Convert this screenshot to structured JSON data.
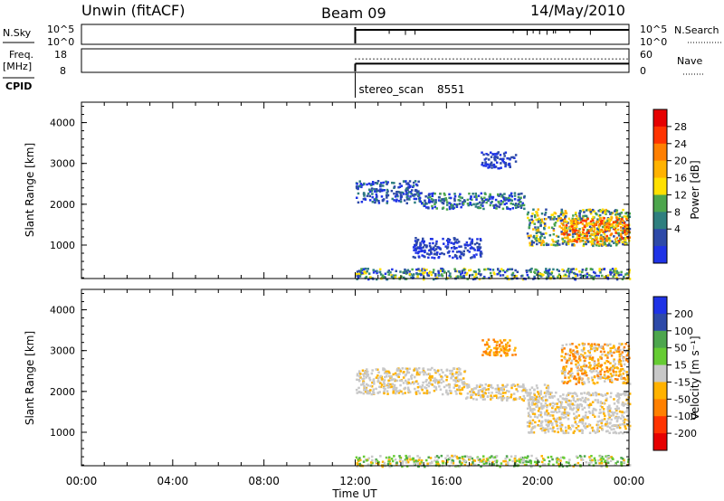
{
  "header": {
    "title": "Unwin (fitACF)",
    "beam": "Beam 09",
    "date": "14/May/2010"
  },
  "chart_data": [
    {
      "type": "line",
      "panel": "noise",
      "left_label": "N.Sky",
      "right_label": "N.Search",
      "left_ticks": [
        "10^5",
        "10^0"
      ],
      "right_ticks": [
        "10^5",
        "10^0"
      ],
      "x_range_hours": [
        0,
        24
      ],
      "data_start_hour": 12
    },
    {
      "type": "line",
      "panel": "frequency",
      "left_label": "Freq.",
      "left_unit": "[MHz]",
      "right_label": "Nave",
      "left_ticks": [
        18,
        8
      ],
      "right_ticks": [
        60,
        0
      ],
      "freq_mhz_after_start": 11.7,
      "nave_after_start": 34,
      "data_start_hour": 12
    },
    {
      "type": "table",
      "panel": "cpid",
      "label": "CPID",
      "program_name": "stereo_scan",
      "program_id": "8551",
      "start_hour": 12
    },
    {
      "type": "heatmap",
      "panel": "power",
      "ylabel": "Slant Range [km]",
      "yticks": [
        1000,
        2000,
        3000,
        4000
      ],
      "ylim": [
        180,
        4500
      ],
      "colorbar": {
        "title": "Power [dB]",
        "labels": [
          "28",
          "24",
          "20",
          "16",
          "12",
          "8",
          "4"
        ],
        "colors": [
          "#e60000",
          "#ff3300",
          "#ff7f00",
          "#ffb200",
          "#ffe000",
          "#4da64d",
          "#2f7f7f",
          "#2e4aa8",
          "#1f33e6"
        ]
      },
      "bands": [
        {
          "t0": 12.0,
          "t1": 14.8,
          "r0": 2050,
          "r1": 2600,
          "levels": [
            0,
            1,
            2
          ]
        },
        {
          "t0": 14.8,
          "t1": 19.5,
          "r0": 1900,
          "r1": 2300,
          "levels": [
            0,
            1,
            2,
            3
          ]
        },
        {
          "t0": 17.5,
          "t1": 19.0,
          "r0": 2900,
          "r1": 3300,
          "levels": [
            0,
            1
          ]
        },
        {
          "t0": 19.5,
          "t1": 24.0,
          "r0": 1000,
          "r1": 1900,
          "levels": [
            1,
            2,
            3,
            4,
            5
          ]
        },
        {
          "t0": 21.0,
          "t1": 24.0,
          "r0": 1100,
          "r1": 1700,
          "levels": [
            4,
            5,
            6,
            7
          ]
        },
        {
          "t0": 12.0,
          "t1": 24.0,
          "r0": 180,
          "r1": 450,
          "levels": [
            0,
            1,
            2,
            3,
            4
          ]
        },
        {
          "t0": 14.5,
          "t1": 17.5,
          "r0": 700,
          "r1": 1200,
          "levels": [
            0,
            1
          ]
        }
      ]
    },
    {
      "type": "heatmap",
      "panel": "velocity",
      "ylabel": "Slant Range [km]",
      "yticks": [
        1000,
        2000,
        3000,
        4000
      ],
      "ylim": [
        180,
        4500
      ],
      "xticks": [
        "00:00",
        "04:00",
        "08:00",
        "12:00",
        "16:00",
        "20:00",
        "00:00"
      ],
      "xlabel": "Time UT",
      "colorbar": {
        "title": "Velocity [m s⁻¹]",
        "labels": [
          "200",
          "100",
          "50",
          "15",
          "-15",
          "-50",
          "-100",
          "-200"
        ],
        "colors": [
          "#1f33e6",
          "#2e4aa8",
          "#4da64d",
          "#66cc33",
          "#c8c8c8",
          "#ffb200",
          "#ff8000",
          "#ff3300",
          "#e60000"
        ]
      },
      "bands": [
        {
          "t0": 12.0,
          "t1": 16.8,
          "r0": 1950,
          "r1": 2600,
          "levels": [
            4,
            4,
            4,
            3
          ]
        },
        {
          "t0": 16.8,
          "t1": 20.5,
          "r0": 1800,
          "r1": 2200,
          "levels": [
            4,
            4,
            3
          ]
        },
        {
          "t0": 17.5,
          "t1": 19.0,
          "r0": 2900,
          "r1": 3300,
          "levels": [
            3,
            2
          ]
        },
        {
          "t0": 19.5,
          "t1": 24.0,
          "r0": 1000,
          "r1": 2000,
          "levels": [
            4,
            4,
            4,
            3
          ]
        },
        {
          "t0": 12.0,
          "t1": 24.0,
          "r0": 180,
          "r1": 450,
          "levels": [
            3,
            5,
            6,
            4
          ]
        },
        {
          "t0": 21.0,
          "t1": 24.0,
          "r0": 2200,
          "r1": 3200,
          "levels": [
            3,
            2,
            4
          ]
        }
      ]
    }
  ]
}
